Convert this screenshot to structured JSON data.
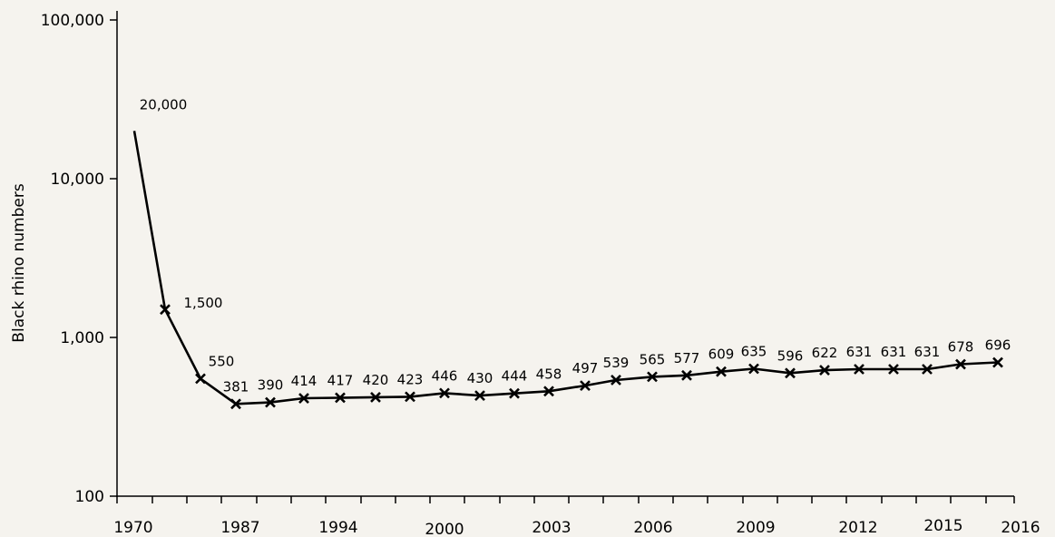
{
  "chart_data": {
    "type": "line",
    "title": "",
    "xlabel": "",
    "ylabel": "Black rhino numbers",
    "y_scale": "log",
    "ylim": [
      100,
      100000
    ],
    "y_ticks": [
      100,
      1000,
      10000,
      100000
    ],
    "y_tick_labels": [
      "100",
      "1,000",
      "10,000",
      "100,000"
    ],
    "x_tick_labels": [
      "1970",
      "1987",
      "1994",
      "2000",
      "2003",
      "2006",
      "2009",
      "2012",
      "2015",
      "2016"
    ],
    "grid": false,
    "legend": "none",
    "line_color": "#000000",
    "background_color": "#f5f3ee",
    "series": [
      {
        "values": [
          20000,
          1500,
          550,
          381,
          390,
          414,
          417,
          420,
          423,
          446,
          430,
          444,
          458,
          497,
          539,
          565,
          577,
          609,
          635,
          596,
          622,
          631,
          631,
          631,
          678,
          696
        ],
        "labels": [
          "20,000",
          "1,500",
          "550",
          "381",
          "390",
          "414",
          "417",
          "420",
          "423",
          "446",
          "430",
          "444",
          "458",
          "497",
          "539",
          "565",
          "577",
          "609",
          "635",
          "596",
          "622",
          "631",
          "631",
          "631",
          "678",
          "696"
        ]
      }
    ]
  }
}
